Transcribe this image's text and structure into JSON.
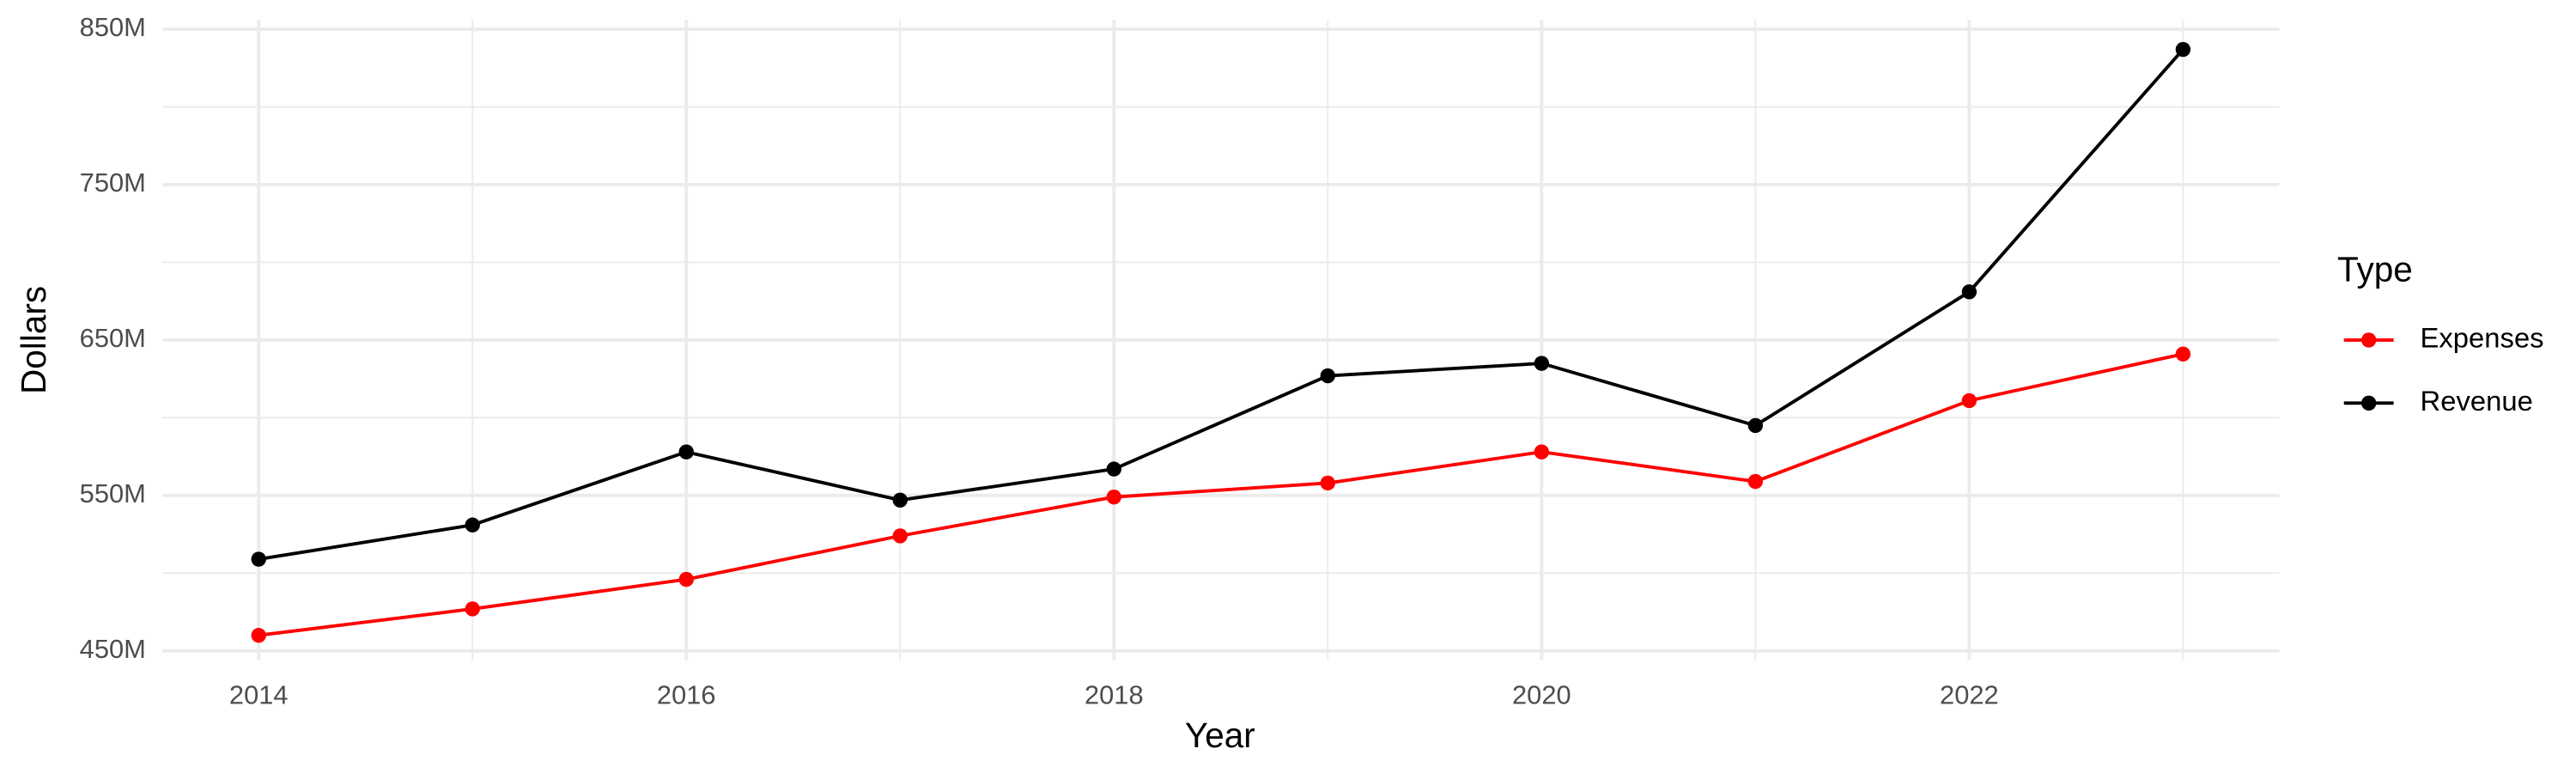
{
  "chart_data": {
    "type": "line",
    "x_label": "Year",
    "y_label": "Dollars",
    "x": [
      2014,
      2015,
      2016,
      2017,
      2018,
      2019,
      2020,
      2021,
      2022,
      2023
    ],
    "series": [
      {
        "name": "Expenses",
        "color": "#ff0000",
        "values": [
          460000000,
          477000000,
          496000000,
          524000000,
          549000000,
          558000000,
          578000000,
          559000000,
          611000000,
          641000000
        ]
      },
      {
        "name": "Revenue",
        "color": "#000000",
        "values": [
          509000000,
          531000000,
          578000000,
          547000000,
          567000000,
          627000000,
          635000000,
          595000000,
          681000000,
          837000000
        ]
      }
    ],
    "xlim": [
      2013.55,
      2023.45
    ],
    "xticks": [
      2014,
      2016,
      2018,
      2020,
      2022
    ],
    "ylim": [
      444000000,
      856000000
    ],
    "yticks": [
      {
        "value": 450000000,
        "label": "450M"
      },
      {
        "value": 550000000,
        "label": "550M"
      },
      {
        "value": 650000000,
        "label": "650M"
      },
      {
        "value": 750000000,
        "label": "750M"
      },
      {
        "value": 850000000,
        "label": "850M"
      }
    ],
    "grid": true,
    "legend_title": "Type",
    "legend_position": "right"
  }
}
